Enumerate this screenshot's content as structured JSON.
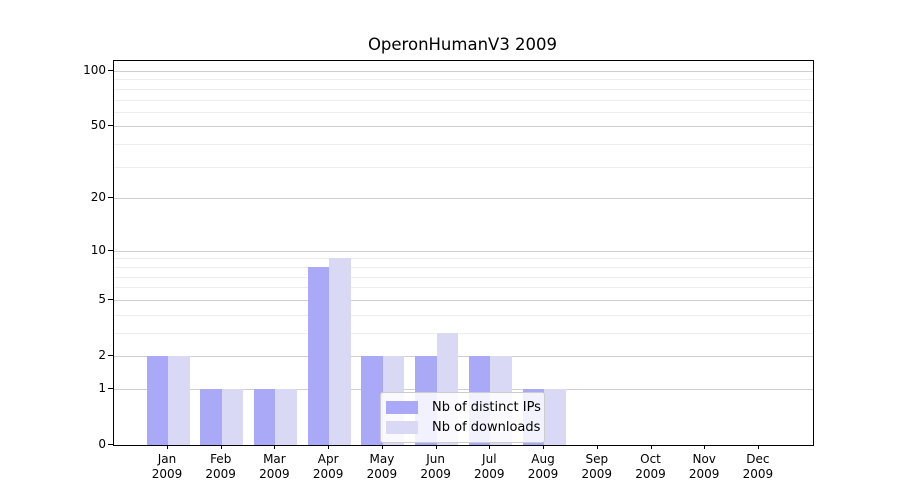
{
  "chart_data": {
    "type": "bar",
    "title": "OperonHumanV3 2009",
    "year": "2009",
    "categories": [
      "Jan",
      "Feb",
      "Mar",
      "Apr",
      "May",
      "Jun",
      "Jul",
      "Aug",
      "Sep",
      "Oct",
      "Nov",
      "Dec"
    ],
    "series": [
      {
        "name": "Nb of distinct IPs",
        "color": "#a9a9f7",
        "values": [
          2,
          1,
          1,
          8,
          2,
          2,
          2,
          1,
          0,
          0,
          0,
          0
        ]
      },
      {
        "name": "Nb of downloads",
        "color": "#d9d9f6",
        "values": [
          2,
          1,
          1,
          9,
          2,
          3,
          2,
          1,
          0,
          0,
          0,
          0
        ]
      }
    ],
    "yscale": "log10(value+1)",
    "ytick_values": [
      0,
      1,
      2,
      5,
      10,
      20,
      50,
      100
    ],
    "ytick_labels": [
      "0",
      "1",
      "2",
      "5",
      "10",
      "20",
      "50",
      "100"
    ],
    "minor_tick_values": [
      3,
      4,
      6,
      7,
      8,
      9,
      30,
      40,
      60,
      70,
      80,
      90
    ],
    "ylim": [
      0,
      113
    ],
    "grid": "on",
    "legend_position": "lower center",
    "colors": {
      "major_grid": "#cfcfcf",
      "minor_grid": "#ededed",
      "spine": "#000000",
      "background": "#ffffff"
    }
  }
}
